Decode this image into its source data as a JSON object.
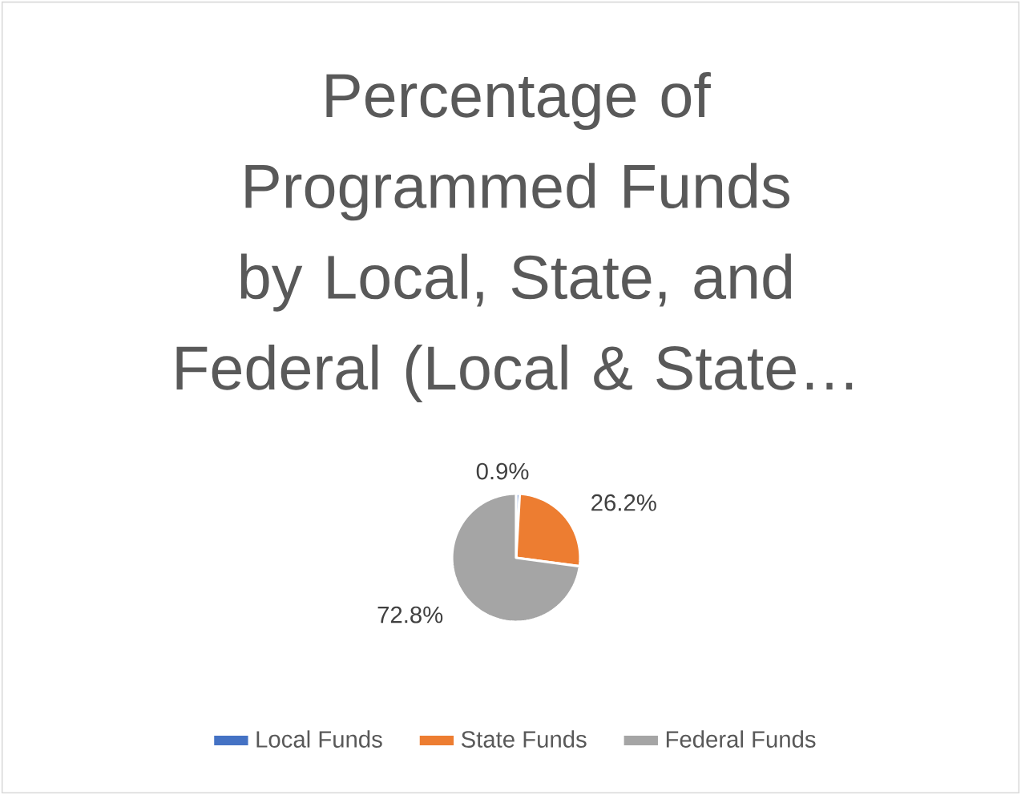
{
  "chart_data": {
    "type": "pie",
    "title": "Percentage of Programmed Funds by Local, State, and Federal (Local & State…",
    "categories": [
      "Local Funds",
      "State Funds",
      "Federal Funds"
    ],
    "values": [
      0.9,
      26.2,
      72.8
    ],
    "colors": [
      "#4472c4",
      "#ed7d31",
      "#a5a5a5"
    ],
    "value_labels": [
      "0.9%",
      "26.2%",
      "72.8%"
    ],
    "legend": "bottom"
  }
}
